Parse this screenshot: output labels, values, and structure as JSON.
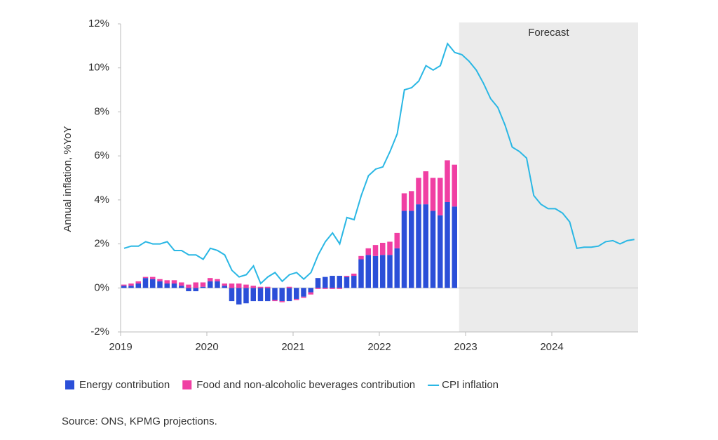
{
  "chart_data": {
    "type": "bar_line",
    "y_label": "Annual inflation, %YoY",
    "source": "Source: ONS, KPMG projections.",
    "forecast": {
      "label": "Forecast",
      "start": 47
    },
    "categories": [
      "2019",
      null,
      null,
      null,
      null,
      null,
      null,
      null,
      null,
      null,
      null,
      null,
      "2020",
      null,
      null,
      null,
      null,
      null,
      null,
      null,
      null,
      null,
      null,
      null,
      "2021",
      null,
      null,
      null,
      null,
      null,
      null,
      null,
      null,
      null,
      null,
      null,
      "2022",
      null,
      null,
      null,
      null,
      null,
      null,
      null,
      null,
      null,
      null,
      null,
      "2023",
      null,
      null,
      null,
      null,
      null,
      null,
      null,
      null,
      null,
      null,
      null,
      "2024",
      null,
      null,
      null,
      null,
      null,
      null,
      null,
      null,
      null,
      null,
      null
    ],
    "series": [
      {
        "name": "Energy contribution",
        "type": "bar",
        "color": "#2b4fd8",
        "values": [
          0.1,
          0.1,
          0.2,
          0.45,
          0.4,
          0.3,
          0.2,
          0.2,
          0.1,
          -0.15,
          -0.15,
          0.05,
          0.3,
          0.3,
          0.1,
          -0.6,
          -0.75,
          -0.7,
          -0.6,
          -0.6,
          -0.6,
          -0.55,
          -0.6,
          -0.6,
          -0.5,
          -0.4,
          -0.2,
          0.45,
          0.5,
          0.55,
          0.55,
          0.5,
          0.55,
          1.3,
          1.5,
          1.45,
          1.5,
          1.5,
          1.8,
          3.5,
          3.5,
          3.8,
          3.8,
          3.5,
          3.3,
          3.9,
          3.7,
          null,
          null,
          null,
          null,
          null,
          null,
          null,
          null,
          null,
          null,
          null,
          null,
          null,
          null,
          null,
          null,
          null,
          null,
          null,
          null,
          null,
          null,
          null,
          null,
          null
        ]
      },
      {
        "name": "Food and non-alcoholic beverages contribution",
        "type": "bar",
        "color": "#f03fa3",
        "values": [
          0.05,
          0.1,
          0.1,
          0.05,
          0.1,
          0.1,
          0.15,
          0.15,
          0.15,
          0.15,
          0.25,
          0.2,
          0.15,
          0.1,
          0.1,
          0.2,
          0.2,
          0.15,
          0.1,
          0.05,
          0.05,
          -0.05,
          -0.05,
          0.05,
          -0.05,
          -0.05,
          -0.1,
          -0.05,
          -0.05,
          -0.05,
          -0.05,
          0.05,
          0.1,
          0.15,
          0.3,
          0.5,
          0.55,
          0.6,
          0.7,
          0.8,
          0.9,
          1.2,
          1.5,
          1.5,
          1.7,
          1.9,
          1.9,
          null,
          null,
          null,
          null,
          null,
          null,
          null,
          null,
          null,
          null,
          null,
          null,
          null,
          null,
          null,
          null,
          null,
          null,
          null,
          null,
          null,
          null,
          null,
          null,
          null
        ]
      },
      {
        "name": "CPI inflation",
        "type": "line",
        "color": "#2ab7e4",
        "values": [
          1.8,
          1.9,
          1.9,
          2.1,
          2.0,
          2.0,
          2.1,
          1.7,
          1.7,
          1.5,
          1.5,
          1.3,
          1.8,
          1.7,
          1.5,
          0.8,
          0.5,
          0.6,
          1.0,
          0.2,
          0.5,
          0.7,
          0.3,
          0.6,
          0.7,
          0.4,
          0.7,
          1.5,
          2.1,
          2.5,
          2.0,
          3.2,
          3.1,
          4.2,
          5.1,
          5.4,
          5.5,
          6.2,
          7.0,
          9.0,
          9.1,
          9.4,
          10.1,
          9.9,
          10.1,
          11.1,
          10.7,
          10.6,
          10.3,
          9.9,
          9.3,
          8.6,
          8.2,
          7.4,
          6.4,
          6.2,
          5.9,
          4.2,
          3.8,
          3.6,
          3.6,
          3.4,
          3.0,
          1.8,
          1.85,
          1.85,
          1.9,
          2.1,
          2.15,
          2.0,
          2.15,
          2.2
        ]
      }
    ],
    "ylim": [
      -2,
      12
    ],
    "yticks": [
      {
        "value": -2,
        "label": "-2%"
      },
      {
        "value": 0,
        "label": "0%"
      },
      {
        "value": 2,
        "label": "2%"
      },
      {
        "value": 4,
        "label": "4%"
      },
      {
        "value": 6,
        "label": "6%"
      },
      {
        "value": 8,
        "label": "8%"
      },
      {
        "value": 10,
        "label": "10%"
      },
      {
        "value": 12,
        "label": "12%"
      }
    ],
    "legend": "bottom-left"
  }
}
